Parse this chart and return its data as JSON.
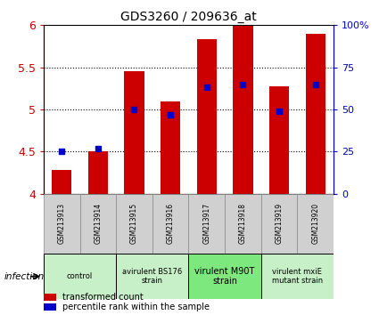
{
  "title": "GDS3260 / 209636_at",
  "samples": [
    "GSM213913",
    "GSM213914",
    "GSM213915",
    "GSM213916",
    "GSM213917",
    "GSM213918",
    "GSM213919",
    "GSM213920"
  ],
  "transformed_counts": [
    4.28,
    4.5,
    5.45,
    5.1,
    5.83,
    6.0,
    5.27,
    5.9
  ],
  "percentile_ranks": [
    25,
    27,
    50,
    47,
    63,
    65,
    49,
    65
  ],
  "ylim": [
    4.0,
    6.0
  ],
  "yticks": [
    4.0,
    4.5,
    5.0,
    5.5,
    6.0
  ],
  "ytick_labels": [
    "4",
    "4.5",
    "5",
    "5.5",
    "6"
  ],
  "bar_color": "#cc0000",
  "dot_color": "#0000cc",
  "bar_bottom": 4.0,
  "group_info": [
    {
      "start": 0,
      "end": 2,
      "label": "control",
      "color": "#c8f0c8"
    },
    {
      "start": 2,
      "end": 4,
      "label": "avirulent BS176\nstrain",
      "color": "#c8f0c8"
    },
    {
      "start": 4,
      "end": 6,
      "label": "virulent M90T\nstrain",
      "color": "#7de87d"
    },
    {
      "start": 6,
      "end": 8,
      "label": "virulent mxiE\nmutant strain",
      "color": "#c8f0c8"
    }
  ],
  "infection_label": "infection",
  "legend_red": "transformed count",
  "legend_blue": "percentile rank within the sample",
  "right_yticks": [
    0,
    25,
    50,
    75,
    100
  ],
  "right_yticklabels": [
    "0",
    "25",
    "50",
    "75",
    "100%"
  ],
  "sample_box_color": "#d0d0d0",
  "sample_box_edge": "#888888"
}
